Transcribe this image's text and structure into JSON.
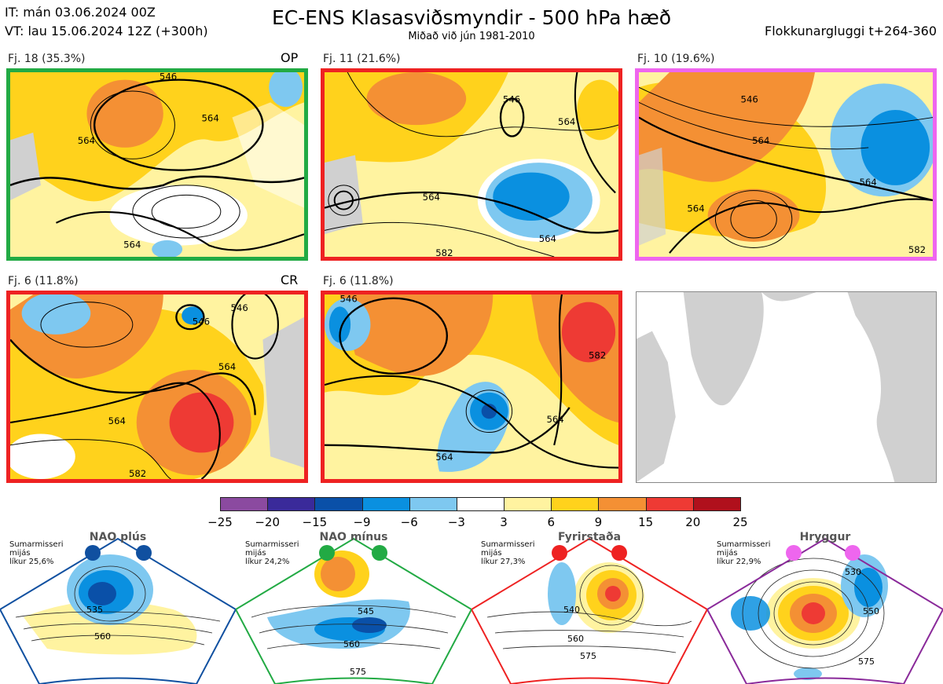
{
  "header": {
    "it": "IT: mán 03.06.2024 00Z",
    "vt": "VT: lau 15.06.2024 12Z  (+300h)",
    "title": "EC-ENS Klasasviðsmyndir - 500 hPa hæð",
    "subtitle": "Miðað við jún 1981-2010",
    "window": "Flokkunargluggi t+264-360"
  },
  "clusters": [
    {
      "label": "Fj. 18 (35.3%)",
      "tag": "OP",
      "border_color": "#22aa44",
      "contours": [
        "546",
        "564",
        "564",
        "564"
      ]
    },
    {
      "label": "Fj. 11 (21.6%)",
      "tag": "",
      "border_color": "#ee2222",
      "contours": [
        "546",
        "564",
        "564",
        "564",
        "582"
      ]
    },
    {
      "label": "Fj. 10 (19.6%)",
      "tag": "",
      "border_color": "#ee66ee",
      "contours": [
        "546",
        "564",
        "564",
        "564",
        "582"
      ]
    },
    {
      "label": "Fj. 6 (11.8%)",
      "tag": "CR",
      "border_color": "#ee2222",
      "contours": [
        "546",
        "546",
        "564",
        "564",
        "582"
      ]
    },
    {
      "label": "Fj. 6 (11.8%)",
      "tag": "",
      "border_color": "#ee2222",
      "contours": [
        "546",
        "564",
        "564",
        "582"
      ]
    }
  ],
  "colorbar": {
    "ticks": [
      "−25",
      "−20",
      "−15",
      "−9",
      "−6",
      "−3",
      "3",
      "6",
      "9",
      "15",
      "20",
      "25"
    ],
    "colors": [
      "#8b4aa0",
      "#3a2a9a",
      "#0a50a8",
      "#0a90e0",
      "#7ec8f0",
      "#ffffff",
      "#fff3a0",
      "#ffd21c",
      "#f49034",
      "#ee3a34",
      "#b0101c"
    ]
  },
  "regimes": [
    {
      "name": "NAO plús",
      "season": "Sumarmisseri",
      "mean": "mijás",
      "prob": "líkur 25,6%",
      "color": "#1050a0",
      "labels": [
        "535",
        "560"
      ]
    },
    {
      "name": "NAO mínus",
      "season": "Sumarmisseri",
      "mean": "mijás",
      "prob": "líkur 24,2%",
      "color": "#22aa44",
      "labels": [
        "545",
        "560",
        "575"
      ]
    },
    {
      "name": "Fyrirstaða",
      "season": "Sumarmisseri",
      "mean": "mijás",
      "prob": "líkur 27,3%",
      "color": "#ee2222",
      "labels": [
        "540",
        "560",
        "575"
      ]
    },
    {
      "name": "Hryggur",
      "season": "Sumarmisseri",
      "mean": "mijás",
      "prob": "líkur 22,9%",
      "color": "#ee66ee",
      "labels": [
        "530",
        "550",
        "575"
      ]
    }
  ]
}
